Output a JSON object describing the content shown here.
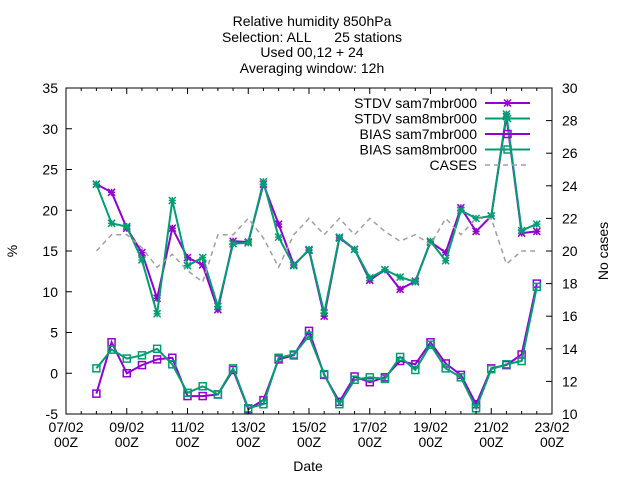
{
  "chart_data": {
    "type": "line",
    "title_lines": [
      "Relative humidity 850hPa",
      "Selection: ALL      25 stations",
      "Used 00,12 + 24",
      "Averaging window: 12h"
    ],
    "xlabel": "Date",
    "ylabel": "%",
    "y2label": "No cases",
    "xlim": [
      0,
      16
    ],
    "ylim": [
      -5,
      35
    ],
    "y2lim": [
      10,
      30
    ],
    "grid": false,
    "legend_position": "top-right",
    "x_ticks": [
      {
        "x": 0,
        "line1": "07/02",
        "line2": "00Z"
      },
      {
        "x": 2,
        "line1": "09/02",
        "line2": "00Z"
      },
      {
        "x": 4,
        "line1": "11/02",
        "line2": "00Z"
      },
      {
        "x": 6,
        "line1": "13/02",
        "line2": "00Z"
      },
      {
        "x": 8,
        "line1": "15/02",
        "line2": "00Z"
      },
      {
        "x": 10,
        "line1": "17/02",
        "line2": "00Z"
      },
      {
        "x": 12,
        "line1": "19/02",
        "line2": "00Z"
      },
      {
        "x": 14,
        "line1": "21/02",
        "line2": "00Z"
      },
      {
        "x": 16,
        "line1": "23/02",
        "line2": "00Z"
      }
    ],
    "y_ticks": [
      "-5",
      "0",
      "5",
      "10",
      "15",
      "20",
      "25",
      "30",
      "35"
    ],
    "y2_ticks": [
      "10",
      "12",
      "14",
      "16",
      "18",
      "20",
      "22",
      "24",
      "26",
      "28",
      "30"
    ],
    "x": [
      1,
      1.5,
      2,
      2.5,
      3,
      3.5,
      4,
      4.5,
      5,
      5.5,
      6,
      6.5,
      7,
      7.5,
      8,
      8.5,
      9,
      9.5,
      10,
      10.5,
      11,
      11.5,
      12,
      12.5,
      13,
      13.5,
      14,
      14.5,
      15,
      15.5
    ],
    "series": [
      {
        "name": "STDV sam7mbr000",
        "axis": "y1",
        "color": "#9400d3",
        "marker": "star",
        "values": [
          23.2,
          22.2,
          17.8,
          14.8,
          9.2,
          17.8,
          14.2,
          13.3,
          7.8,
          16.2,
          16.1,
          23.2,
          18.3,
          13.3,
          15.1,
          7.0,
          16.6,
          15.2,
          11.4,
          12.7,
          10.3,
          11.3,
          16.1,
          14.8,
          20.3,
          17.4,
          19.3,
          31.5,
          17.2,
          17.4
        ]
      },
      {
        "name": "STDV sam8mbr000",
        "axis": "y1",
        "color": "#009e73",
        "marker": "star",
        "values": [
          23.2,
          18.4,
          18.0,
          13.9,
          7.3,
          21.2,
          13.2,
          14.2,
          8.2,
          15.9,
          16.0,
          23.5,
          16.7,
          13.2,
          15.2,
          7.4,
          16.7,
          15.2,
          11.7,
          12.7,
          11.8,
          11.2,
          16.2,
          13.8,
          20.0,
          19.0,
          19.3,
          31.8,
          17.5,
          18.3
        ]
      },
      {
        "name": "BIAS sam7mbr000",
        "axis": "y1",
        "color": "#9400d3",
        "marker": "box",
        "values": [
          -2.5,
          3.8,
          0.0,
          1.0,
          1.7,
          1.9,
          -2.8,
          -2.8,
          -2.6,
          0.4,
          -4.4,
          -3.3,
          1.7,
          2.2,
          5.2,
          -0.2,
          -3.5,
          -0.4,
          -1.1,
          -0.5,
          1.5,
          1.1,
          3.8,
          1.2,
          -0.2,
          -3.8,
          0.6,
          1.0,
          2.3,
          11.0
        ]
      },
      {
        "name": "BIAS sam8mbr000",
        "axis": "y1",
        "color": "#009e73",
        "marker": "box",
        "values": [
          0.6,
          2.9,
          1.8,
          2.2,
          3.0,
          1.1,
          -2.4,
          -1.6,
          -2.6,
          0.6,
          -4.3,
          -3.8,
          1.9,
          2.3,
          4.6,
          -0.1,
          -3.8,
          -0.8,
          -0.5,
          -0.7,
          2.0,
          0.4,
          3.5,
          0.6,
          -0.5,
          -4.3,
          0.5,
          1.1,
          1.5,
          10.6
        ]
      },
      {
        "name": "CASES",
        "axis": "y2",
        "color": "#a0a0a0",
        "marker": "none",
        "dashed": true,
        "values": [
          20.0,
          21.0,
          21.0,
          20.2,
          19.0,
          19.8,
          18.8,
          18.1,
          21.0,
          21.0,
          22.0,
          20.8,
          19.0,
          21.0,
          22.0,
          21.0,
          22.0,
          21.0,
          22.0,
          21.2,
          20.6,
          21.0,
          20.4,
          22.0,
          21.0,
          22.0,
          22.0,
          19.2,
          20.0,
          20.0
        ]
      }
    ]
  }
}
